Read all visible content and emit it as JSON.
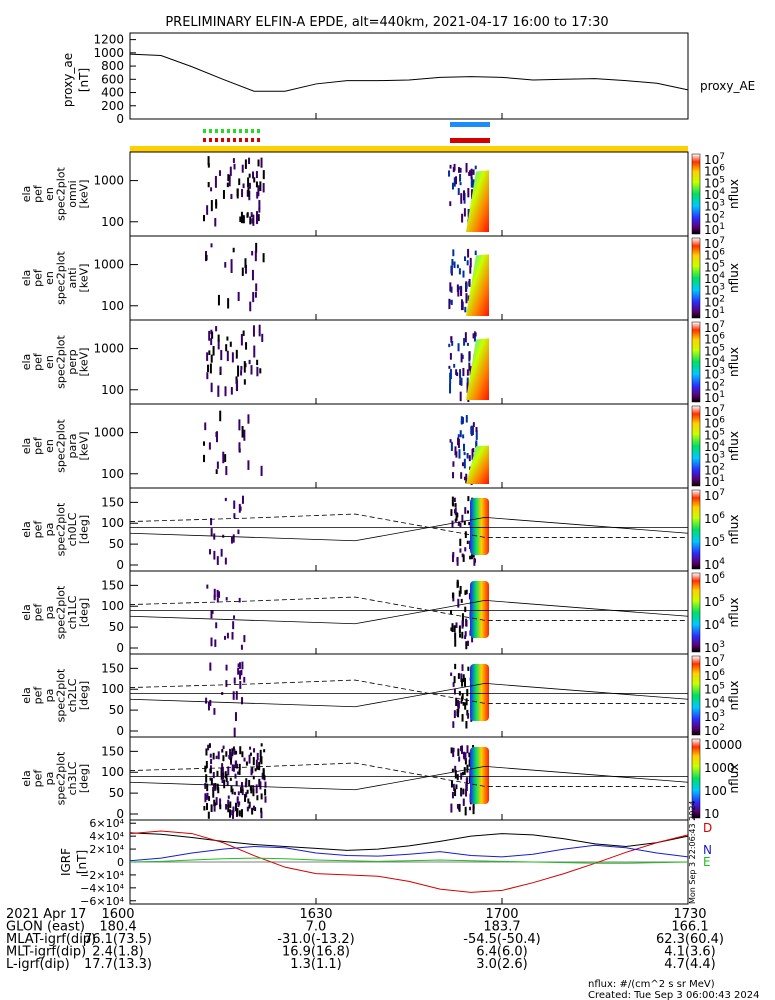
{
  "title": "PRELIMINARY ELFIN-A EPDE, alt=440km, 2021-04-17 16:00 to 17:30",
  "proxy_ae": {
    "ylabel": "proxy_ae",
    "units": "[nT]",
    "legend": "proxy_AE",
    "yticks": [
      "0",
      "200",
      "400",
      "600",
      "800",
      "1000",
      "1200"
    ]
  },
  "spectrograms": [
    {
      "label": [
        "ela",
        "pef",
        "en",
        "spec2plot",
        "omni",
        "[keV]"
      ],
      "yticks": [
        "100",
        "1000"
      ],
      "bar": [
        "10",
        "10",
        "10",
        "10",
        "10",
        "10",
        "10"
      ],
      "bar_exp": [
        "1",
        "2",
        "3",
        "4",
        "5",
        "6",
        "7"
      ],
      "unit": "nflux"
    },
    {
      "label": [
        "ela",
        "pef",
        "en",
        "spec2plot",
        "anti",
        "[keV]"
      ],
      "yticks": [
        "100",
        "1000"
      ],
      "bar": [
        "10",
        "10",
        "10",
        "10",
        "10",
        "10",
        "10"
      ],
      "bar_exp": [
        "1",
        "2",
        "3",
        "4",
        "5",
        "6",
        "7"
      ],
      "unit": "nflux"
    },
    {
      "label": [
        "ela",
        "pef",
        "en",
        "spec2plot",
        "perp",
        "[keV]"
      ],
      "yticks": [
        "100",
        "1000"
      ],
      "bar": [
        "10",
        "10",
        "10",
        "10",
        "10",
        "10",
        "10"
      ],
      "bar_exp": [
        "1",
        "2",
        "3",
        "4",
        "5",
        "6",
        "7"
      ],
      "unit": "nflux"
    },
    {
      "label": [
        "ela",
        "pef",
        "en",
        "spec2plot",
        "para",
        "[keV]"
      ],
      "yticks": [
        "100",
        "1000"
      ],
      "bar": [
        "10",
        "10",
        "10",
        "10",
        "10",
        "10",
        "10"
      ],
      "bar_exp": [
        "1",
        "2",
        "3",
        "4",
        "5",
        "6",
        "7"
      ],
      "unit": "nflux"
    }
  ],
  "pitch_panels": [
    {
      "label": [
        "ela",
        "pef",
        "pa",
        "spec2plot",
        "ch0LC",
        "[deg]"
      ],
      "yticks": [
        "0",
        "50",
        "100",
        "150"
      ],
      "bar": [
        "10",
        "10",
        "10",
        "10"
      ],
      "bar_exp": [
        "4",
        "5",
        "6",
        "7"
      ],
      "unit": "nflux"
    },
    {
      "label": [
        "ela",
        "pef",
        "pa",
        "spec2plot",
        "ch1LC",
        "[deg]"
      ],
      "yticks": [
        "0",
        "50",
        "100",
        "150"
      ],
      "bar": [
        "10",
        "10",
        "10",
        "10"
      ],
      "bar_exp": [
        "3",
        "4",
        "5",
        "6"
      ],
      "unit": "nflux"
    },
    {
      "label": [
        "ela",
        "pef",
        "pa",
        "spec2plot",
        "ch2LC",
        "[deg]"
      ],
      "yticks": [
        "0",
        "50",
        "100",
        "150"
      ],
      "bar": [
        "10",
        "10",
        "10",
        "10",
        "10",
        "10"
      ],
      "bar_exp": [
        "2",
        "3",
        "4",
        "5",
        "6",
        "7"
      ],
      "unit": "nflux"
    },
    {
      "label": [
        "ela",
        "pef",
        "pa",
        "spec2plot",
        "ch3LC",
        "[deg]"
      ],
      "yticks": [
        "0",
        "50",
        "100",
        "150"
      ],
      "bar": [
        "10",
        "100",
        "1000",
        "10000"
      ],
      "bar_exp": [
        "",
        "",
        "",
        ""
      ],
      "unit": "nflux"
    }
  ],
  "igrf": {
    "ylabel": "IGRF",
    "units": "[nT]",
    "yticks": [
      "−6×10⁴",
      "−4×10⁴",
      "−2×10⁴",
      "0",
      "2×10⁴",
      "4×10⁴",
      "6×10⁴"
    ],
    "legend": [
      {
        "name": "D",
        "color": "#d40000"
      },
      {
        "name": "N",
        "color": "#1a1ad4"
      },
      {
        "name": "E",
        "color": "#1fbf1f"
      }
    ],
    "stamp": "Mon Sep 3 22:06:43 2024"
  },
  "footer": {
    "rows": [
      {
        "label": "2021 Apr 17",
        "values": [
          "1600",
          "1630",
          "1700",
          "1730"
        ]
      },
      {
        "label": "GLON (east)",
        "values": [
          "180.4",
          "7.0",
          "183.7",
          "166.1"
        ]
      },
      {
        "label": "MLAT-igrf(dip)",
        "values": [
          "76.1(73.5)",
          "-31.0(-13.2)",
          "-54.5(-50.4)",
          "62.3(60.4)"
        ]
      },
      {
        "label": "MLT-igrf(dip)",
        "values": [
          "2.4(1.8)",
          "16.9(16.8)",
          "6.4(6.0)",
          "4.1(3.6)"
        ]
      },
      {
        "label": "L-igrf(dip)",
        "values": [
          "17.7(13.3)",
          "1.3(1.1)",
          "3.0(2.6)",
          "4.7(4.4)"
        ]
      }
    ],
    "note1": "nflux: #/(cm^2 s sr MeV)",
    "note2": "Created: Tue Sep  3 06:00:43 2024"
  },
  "chart_data": [
    {
      "type": "line",
      "title": "proxy_AE",
      "x": [
        "16:00",
        "16:05",
        "16:10",
        "16:15",
        "16:20",
        "16:25",
        "16:30",
        "16:35",
        "16:40",
        "16:45",
        "16:50",
        "16:55",
        "17:00",
        "17:05",
        "17:10",
        "17:15",
        "17:20",
        "17:25",
        "17:30"
      ],
      "series": [
        {
          "name": "proxy_AE",
          "values": [
            980,
            960,
            790,
            600,
            420,
            420,
            530,
            580,
            580,
            590,
            630,
            640,
            630,
            590,
            600,
            610,
            580,
            540,
            440
          ]
        }
      ],
      "ylim": [
        0,
        1300
      ]
    },
    {
      "type": "line",
      "title": "IGRF",
      "x": [
        "16:00",
        "16:05",
        "16:10",
        "16:15",
        "16:20",
        "16:25",
        "16:30",
        "16:35",
        "16:40",
        "16:45",
        "16:50",
        "16:55",
        "17:00",
        "17:05",
        "17:10",
        "17:15",
        "17:20",
        "17:25",
        "17:30"
      ],
      "series": [
        {
          "name": "black",
          "values": [
            45000,
            43000,
            38000,
            32000,
            27000,
            24000,
            21000,
            18000,
            20000,
            25000,
            32000,
            40000,
            44000,
            42000,
            36000,
            28000,
            24000,
            30000,
            40000
          ]
        },
        {
          "name": "D",
          "values": [
            44000,
            48000,
            44000,
            30000,
            10000,
            -8000,
            -18000,
            -20000,
            -22000,
            -30000,
            -42000,
            -47000,
            -44000,
            -32000,
            -18000,
            -2000,
            15000,
            30000,
            42000
          ]
        },
        {
          "name": "N",
          "values": [
            2000,
            6000,
            14000,
            20000,
            24000,
            22000,
            14000,
            10000,
            9000,
            12000,
            16000,
            10000,
            8000,
            12000,
            20000,
            26000,
            22000,
            14000,
            8000
          ]
        },
        {
          "name": "E",
          "values": [
            0,
            1000,
            3000,
            5000,
            6000,
            5000,
            3000,
            2000,
            1000,
            2000,
            3000,
            2000,
            1000,
            0,
            -1000,
            -2000,
            -2000,
            -1000,
            0
          ]
        }
      ],
      "ylim": [
        -65000,
        65000
      ]
    }
  ]
}
